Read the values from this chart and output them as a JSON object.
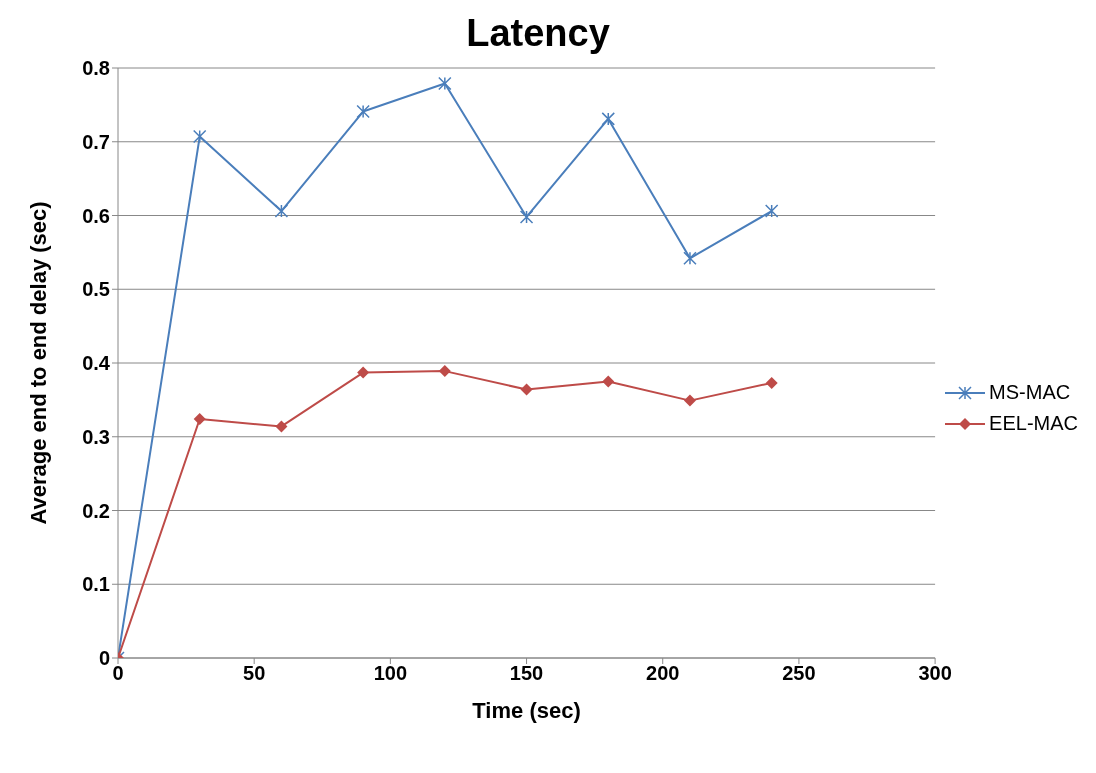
{
  "chart_data": {
    "type": "line",
    "title": "Latency",
    "xlabel": "Time (sec)",
    "ylabel": "Average end to end delay (sec)",
    "x": [
      0,
      30,
      60,
      90,
      120,
      150,
      180,
      210,
      240
    ],
    "series": [
      {
        "name": "MS-MAC",
        "color": "#4a7ebb",
        "marker": "cross",
        "values": [
          0,
          0.707,
          0.606,
          0.741,
          0.779,
          0.598,
          0.731,
          0.542,
          0.606
        ]
      },
      {
        "name": "EEL-MAC",
        "color": "#be4b48",
        "marker": "diamond",
        "values": [
          0,
          0.324,
          0.314,
          0.387,
          0.389,
          0.364,
          0.375,
          0.349,
          0.373
        ]
      }
    ],
    "xlim": [
      0,
      300
    ],
    "xticks": [
      0,
      50,
      100,
      150,
      200,
      250,
      300
    ],
    "ylim": [
      0,
      0.8
    ],
    "yticks": [
      0,
      0.1,
      0.2,
      0.3,
      0.4,
      0.5,
      0.6,
      0.7,
      0.8
    ],
    "grid": "y",
    "legend": "right"
  }
}
